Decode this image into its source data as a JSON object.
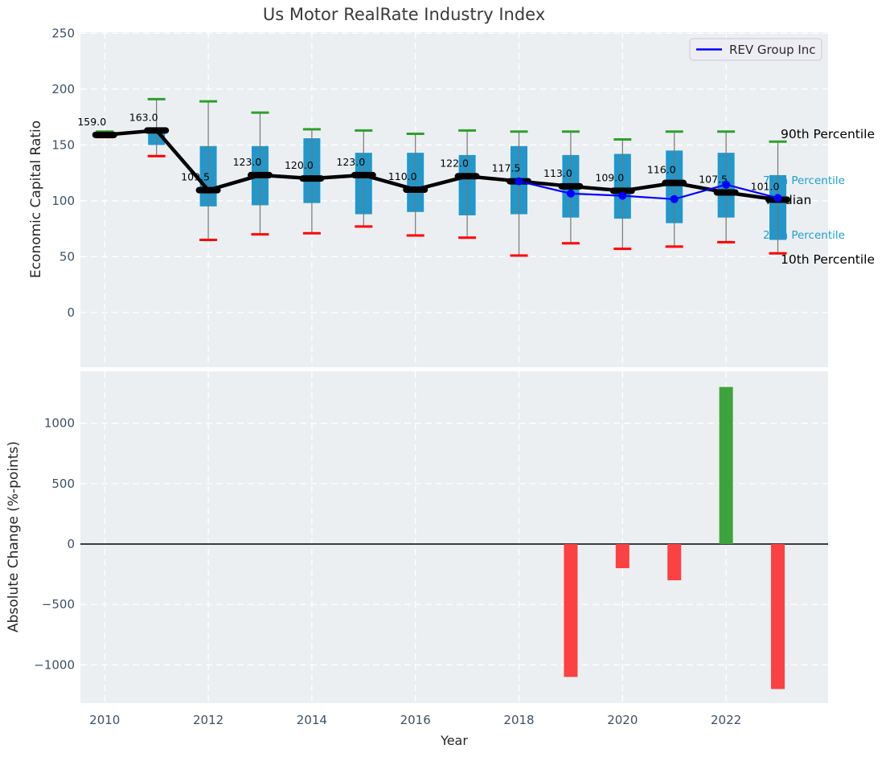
{
  "title": "Us Motor RealRate Industry Index",
  "legend": {
    "label": "REV Group Inc",
    "line_color": "#0000ff"
  },
  "annotations": {
    "p90": {
      "text": "90th Percentile",
      "color": "#000000"
    },
    "p75": {
      "text": "75th Percentile",
      "color": "#1f9fce"
    },
    "median": {
      "text": "Median",
      "color": "#000000"
    },
    "p25": {
      "text": "25th Percentile",
      "color": "#1f9fce"
    },
    "p10": {
      "text": "10th Percentile",
      "color": "#000000"
    }
  },
  "colors": {
    "plot_bg": "#eceff1",
    "grid": "#ffffff",
    "box": "#2397c9",
    "whisker": "#777777",
    "cap_high": "#2ca02c",
    "cap_low": "#ff0000",
    "median": "#000000",
    "rev_line": "#0000ff",
    "bar_pos": "#3da33d",
    "bar_neg": "#fb4141",
    "tick": "#3d5166",
    "title": "#3a3a3a",
    "legend_bg": "#ededf3",
    "legend_border": "#c9c9d4"
  },
  "chart_data": [
    {
      "type": "box-whisker-median-line",
      "title": "Us Motor RealRate Industry Index",
      "ylabel": "Economic Capital Ratio",
      "years": [
        2010,
        2011,
        2012,
        2013,
        2014,
        2015,
        2016,
        2017,
        2018,
        2019,
        2020,
        2021,
        2022,
        2023
      ],
      "p90": [
        162,
        191,
        189,
        179,
        164,
        163,
        160,
        163,
        162,
        162,
        155,
        162,
        162,
        153
      ],
      "q75": [
        160,
        160,
        149,
        149,
        156,
        143,
        143,
        141,
        149,
        141,
        142,
        145,
        143,
        123
      ],
      "median": [
        159,
        163,
        109.5,
        123,
        120,
        123,
        110,
        122,
        117.5,
        113,
        109,
        116,
        107.5,
        101
      ],
      "q25": [
        157,
        150,
        95,
        96,
        98,
        88,
        90,
        87,
        88,
        85,
        84,
        80,
        85,
        65
      ],
      "p10": [
        157,
        140,
        65,
        70,
        71,
        77,
        69,
        67,
        51,
        62,
        57,
        59,
        63,
        53
      ],
      "median_labels": [
        "159.0",
        "163.0",
        "109.5",
        "123.0",
        "120.0",
        "123.0",
        "110.0",
        "122.0",
        "117.5",
        "113.0",
        "109.0",
        "116.0",
        "107.5",
        "101.0"
      ],
      "series": [
        {
          "name": "REV Group Inc",
          "x": [
            2018,
            2019,
            2020,
            2021,
            2022,
            2023
          ],
          "y": [
            117.5,
            106.5,
            104.5,
            101.5,
            114.5,
            102.5
          ]
        }
      ],
      "xlim": [
        2009.53,
        2023.97
      ],
      "ylim": [
        -49,
        251
      ],
      "yticks": [
        0,
        50,
        100,
        150,
        200,
        250
      ],
      "xticks": [
        2010,
        2012,
        2014,
        2016,
        2018,
        2020,
        2022
      ],
      "grid": true,
      "legend_position": "upper right"
    },
    {
      "type": "bar",
      "ylabel": "Absolute Change (%-points)",
      "xlabel": "Year",
      "x": [
        2019,
        2020,
        2021,
        2022,
        2023
      ],
      "values": [
        -1100,
        -200,
        -300,
        1300,
        -1200
      ],
      "xlim": [
        2009.53,
        2023.97
      ],
      "ylim": [
        -1317,
        1430
      ],
      "yticks": [
        -1000,
        -500,
        0,
        500,
        1000
      ],
      "xticks": [
        2010,
        2012,
        2014,
        2016,
        2018,
        2020,
        2022
      ],
      "zero_line": true,
      "grid": true
    }
  ]
}
